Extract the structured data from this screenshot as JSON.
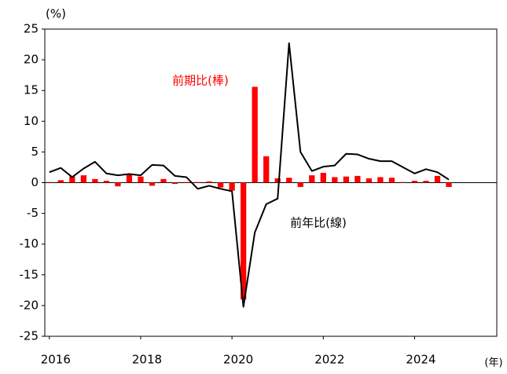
{
  "chart_data": {
    "type": "bar_line",
    "y_unit_label": "(%)",
    "x_unit_label": "(年)",
    "annotations": [
      "前期比(棒)",
      "前年比(線)"
    ],
    "x": [
      2016,
      2016.25,
      2016.5,
      2016.75,
      2017,
      2017.25,
      2017.5,
      2017.75,
      2018,
      2018.25,
      2018.5,
      2018.75,
      2019,
      2019.25,
      2019.5,
      2019.75,
      2020,
      2020.25,
      2020.5,
      2020.75,
      2021,
      2021.25,
      2021.5,
      2021.75,
      2022,
      2022.25,
      2022.5,
      2022.75,
      2023,
      2023.25,
      2023.5,
      2023.75,
      2024,
      2024.25,
      2024.5,
      2024.75
    ],
    "series": [
      {
        "name": "前期比(棒)",
        "kind": "bar",
        "color": "#ff0000",
        "values": [
          0.1,
          0.4,
          1.0,
          1.2,
          0.6,
          0.3,
          -0.6,
          1.3,
          1.0,
          -0.5,
          0.6,
          -0.2,
          0.1,
          0.1,
          0.2,
          -0.8,
          -1.3,
          -19.0,
          15.6,
          4.3,
          0.7,
          0.8,
          -0.7,
          1.2,
          1.6,
          0.9,
          1.0,
          1.1,
          0.7,
          0.9,
          0.8,
          0.1,
          0.3,
          0.3,
          1.1,
          -0.7
        ]
      },
      {
        "name": "前年比(線)",
        "kind": "line",
        "color": "#000000",
        "values": [
          1.7,
          2.4,
          0.9,
          2.3,
          3.4,
          1.5,
          1.2,
          1.4,
          1.2,
          2.9,
          2.8,
          1.1,
          0.9,
          -1.0,
          -0.5,
          -1.0,
          -1.4,
          -20.2,
          -8.1,
          -3.5,
          -2.6,
          22.7,
          5.0,
          1.9,
          2.6,
          2.8,
          4.7,
          4.6,
          3.9,
          3.5,
          3.5,
          2.5,
          1.5,
          2.2,
          1.7,
          0.5
        ]
      }
    ],
    "xlim": [
      2015.9,
      2025.8
    ],
    "xticks": [
      2016,
      2018,
      2020,
      2022,
      2024
    ],
    "ylim": [
      -25,
      25
    ],
    "yticks": [
      -25,
      -20,
      -15,
      -10,
      -5,
      0,
      5,
      10,
      15,
      20,
      25
    ]
  }
}
